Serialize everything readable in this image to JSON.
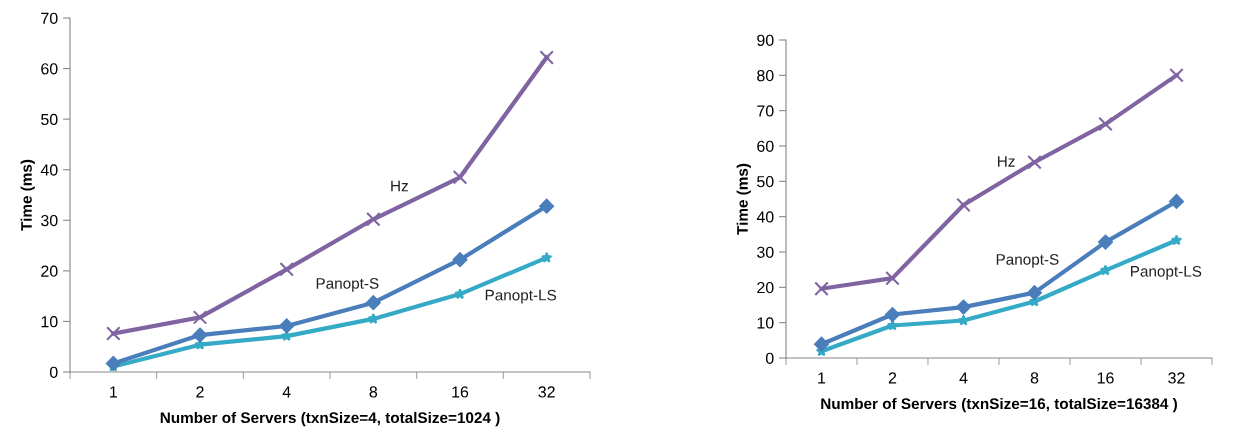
{
  "chart_data": [
    {
      "type": "line",
      "xlabel": "Number of Servers (txnSize=4, totalSize=1024 )",
      "ylabel": "Time (ms)",
      "categories": [
        "1",
        "2",
        "4",
        "8",
        "16",
        "32"
      ],
      "ylim": [
        0,
        70
      ],
      "yticks": [
        0,
        10,
        20,
        30,
        40,
        50,
        60,
        70
      ],
      "grid": false,
      "legend": false,
      "line_style": "solid",
      "series": [
        {
          "name": "Hz",
          "color": "#8064a2",
          "marker": "cross",
          "values": [
            7.6,
            10.8,
            20.3,
            30.2,
            38.5,
            62.2
          ]
        },
        {
          "name": "Panopt-S",
          "color": "#4a7ebb",
          "marker": "diamond",
          "values": [
            1.7,
            7.3,
            9.1,
            13.7,
            22.2,
            32.8
          ]
        },
        {
          "name": "Panopt-LS",
          "color": "#35aac6",
          "marker": "star",
          "values": [
            1.1,
            5.4,
            7.1,
            10.5,
            15.4,
            22.6
          ]
        }
      ]
    },
    {
      "type": "line",
      "xlabel": "Number of Servers (txnSize=16, totalSize=16384 )",
      "ylabel": "Time (ms)",
      "categories": [
        "1",
        "2",
        "4",
        "8",
        "16",
        "32"
      ],
      "ylim": [
        0,
        90
      ],
      "yticks": [
        0,
        10,
        20,
        30,
        40,
        50,
        60,
        70,
        80,
        90
      ],
      "grid": false,
      "legend": false,
      "line_style": "solid",
      "series": [
        {
          "name": "Hz",
          "color": "#8064a2",
          "marker": "cross",
          "values": [
            19.6,
            22.6,
            43.3,
            55.4,
            66.2,
            80.0
          ]
        },
        {
          "name": "Panopt-S",
          "color": "#4a7ebb",
          "marker": "diamond",
          "values": [
            3.9,
            12.3,
            14.4,
            18.5,
            32.8,
            44.3
          ]
        },
        {
          "name": "Panopt-LS",
          "color": "#35aac6",
          "marker": "star",
          "values": [
            1.9,
            9.2,
            10.6,
            16.0,
            24.8,
            33.3
          ]
        }
      ]
    }
  ]
}
